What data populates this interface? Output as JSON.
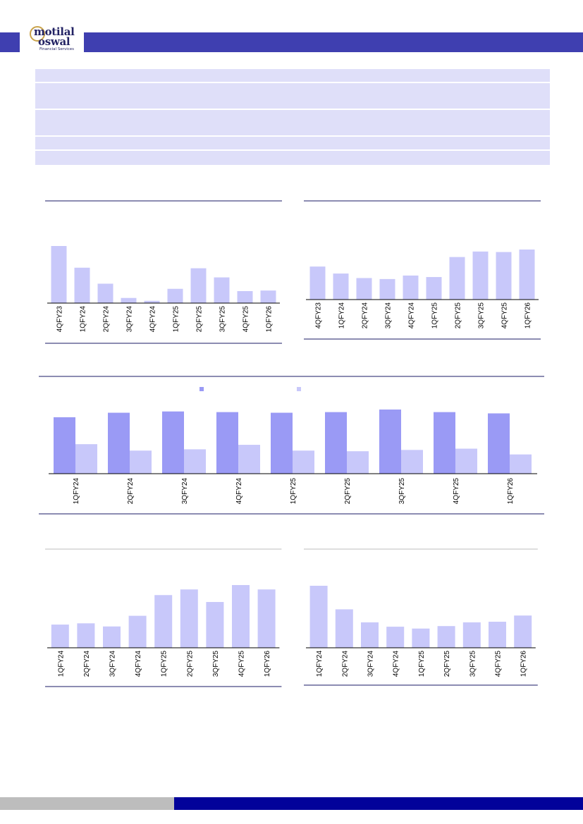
{
  "header": {
    "brand": {
      "line1": "motilal",
      "line2": "oswal",
      "line3": "Financial Services"
    },
    "color_accent": "#3f3fb0"
  },
  "footer": {
    "color_left": "#bdbdbd",
    "color_right": "#02029a"
  },
  "colors": {
    "bar_light": "#c8c8fa",
    "bar_dark": "#9a9af5",
    "rule": "#1a1a66",
    "table_fill": "#dfdff9"
  },
  "chart_data": [
    {
      "type": "bar",
      "categories": [
        "4QFY23",
        "1QFY24",
        "2QFY24",
        "3QFY24",
        "4QFY24",
        "1QFY25",
        "2QFY25",
        "3QFY25",
        "4QFY25",
        "1QFY26"
      ],
      "series": [
        {
          "values": [
            100,
            62,
            34,
            9,
            4,
            25,
            61,
            45,
            21,
            22
          ]
        }
      ]
    },
    {
      "type": "bar",
      "categories": [
        "4QFY23",
        "1QFY24",
        "2QFY24",
        "3QFY24",
        "4QFY24",
        "1QFY25",
        "2QFY25",
        "3QFY25",
        "4QFY25",
        "1QFY26"
      ],
      "series": [
        {
          "values": [
            66,
            52,
            43,
            41,
            48,
            45,
            85,
            96,
            95,
            100
          ]
        }
      ]
    },
    {
      "type": "bar",
      "categories": [
        "1QFY24",
        "2QFY24",
        "3QFY24",
        "4QFY24",
        "1QFY25",
        "2QFY25",
        "3QFY25",
        "4QFY25",
        "1QFY26"
      ],
      "legend": "top",
      "series": [
        {
          "values": [
            88,
            95,
            97,
            96,
            95,
            96,
            100,
            96,
            94
          ]
        },
        {
          "values": [
            46,
            36,
            38,
            45,
            36,
            35,
            37,
            39,
            30
          ]
        }
      ]
    },
    {
      "type": "bar",
      "categories": [
        "1QFY24",
        "2QFY24",
        "3QFY24",
        "4QFY24",
        "1QFY25",
        "2QFY25",
        "3QFY25",
        "4QFY25",
        "1QFY26"
      ],
      "series": [
        {
          "values": [
            37,
            39,
            34,
            51,
            84,
            93,
            73,
            100,
            93
          ]
        }
      ]
    },
    {
      "type": "bar",
      "categories": [
        "1QFY24",
        "2QFY24",
        "3QFY24",
        "4QFY24",
        "1QFY25",
        "2QFY25",
        "3QFY25",
        "4QFY25",
        "1QFY26"
      ],
      "series": [
        {
          "values": [
            100,
            62,
            41,
            34,
            31,
            35,
            41,
            42,
            52
          ]
        }
      ]
    }
  ]
}
